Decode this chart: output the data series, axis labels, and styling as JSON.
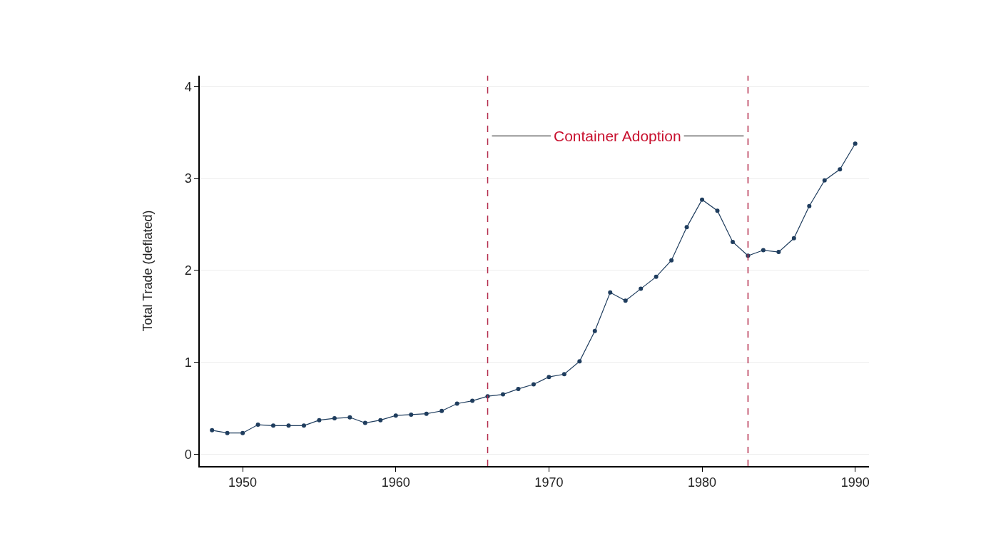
{
  "chart_data": {
    "type": "line",
    "ylabel": "Total Trade (deflated)",
    "x": [
      1948,
      1949,
      1950,
      1951,
      1952,
      1953,
      1954,
      1955,
      1956,
      1957,
      1958,
      1959,
      1960,
      1961,
      1962,
      1963,
      1964,
      1965,
      1966,
      1967,
      1968,
      1969,
      1970,
      1971,
      1972,
      1973,
      1974,
      1975,
      1976,
      1977,
      1978,
      1979,
      1980,
      1981,
      1982,
      1983,
      1984,
      1985,
      1986,
      1987,
      1988,
      1989,
      1990
    ],
    "series": [
      {
        "color": "#1f3d5e",
        "values": [
          0.26,
          0.23,
          0.23,
          0.32,
          0.31,
          0.31,
          0.31,
          0.37,
          0.39,
          0.4,
          0.34,
          0.37,
          0.42,
          0.43,
          0.44,
          0.47,
          0.55,
          0.58,
          0.63,
          0.65,
          0.71,
          0.76,
          0.84,
          0.87,
          1.01,
          1.34,
          1.76,
          1.67,
          1.8,
          1.93,
          2.11,
          2.47,
          2.77,
          2.65,
          2.31,
          2.16,
          2.22,
          2.2,
          2.35,
          2.7,
          2.98,
          3.1,
          3.38
        ]
      }
    ],
    "xlim": [
      1947.2,
      1990.9
    ],
    "xticks": [
      1950,
      1960,
      1970,
      1980,
      1990
    ],
    "ylim": [
      -0.13,
      4.12
    ],
    "yticks": [
      0,
      1,
      2,
      3,
      4
    ],
    "grid": "y",
    "marker": "circle",
    "line_style": "solid",
    "ref_lines": [
      {
        "axis": "x",
        "value": 1966,
        "color": "#b3294a",
        "line_style": "dashed"
      },
      {
        "axis": "x",
        "value": 1983,
        "color": "#b3294a",
        "line_style": "dashed"
      }
    ],
    "annotations": [
      "Container Adoption"
    ]
  }
}
